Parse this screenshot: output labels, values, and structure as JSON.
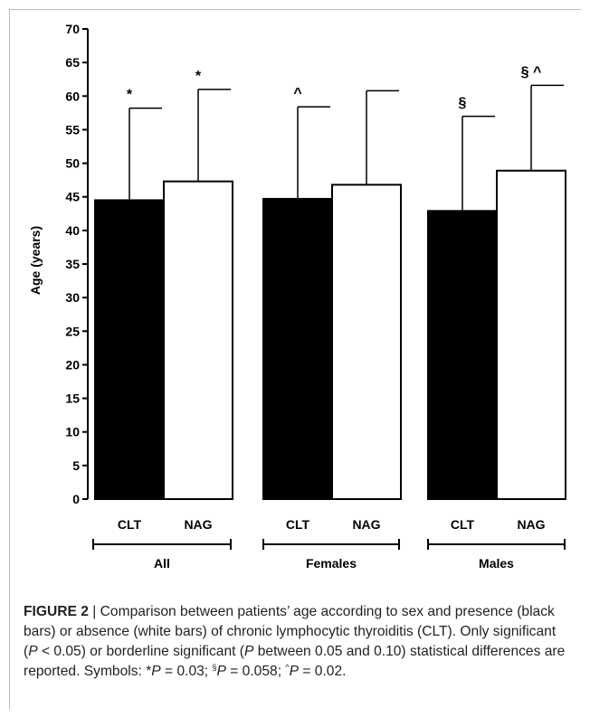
{
  "chart_data": {
    "type": "bar",
    "ylabel": "Age (years)",
    "ylim": [
      0,
      70
    ],
    "yticks": [
      0,
      5,
      10,
      15,
      20,
      25,
      30,
      35,
      40,
      45,
      50,
      55,
      60,
      65,
      70
    ],
    "groups": [
      "All",
      "Females",
      "Males"
    ],
    "bars": [
      {
        "group": "All",
        "label": "CLT",
        "value": 44.5,
        "error_upper": 58.2,
        "fill": "#000000",
        "annotation": "*"
      },
      {
        "group": "All",
        "label": "NAG",
        "value": 47.3,
        "error_upper": 61.0,
        "fill": "#ffffff",
        "annotation": "*"
      },
      {
        "group": "Females",
        "label": "CLT",
        "value": 44.7,
        "error_upper": 58.4,
        "fill": "#000000",
        "annotation": "^"
      },
      {
        "group": "Females",
        "label": "NAG",
        "value": 46.8,
        "error_upper": 60.8,
        "fill": "#ffffff",
        "annotation": ""
      },
      {
        "group": "Males",
        "label": "CLT",
        "value": 42.9,
        "error_upper": 57.0,
        "fill": "#000000",
        "annotation": "§"
      },
      {
        "group": "Males",
        "label": "NAG",
        "value": 48.9,
        "error_upper": 61.6,
        "fill": "#ffffff",
        "annotation": "§ ^"
      }
    ],
    "grid": false,
    "legend": "none"
  },
  "caption": {
    "label": "FIGURE 2",
    "sep": " | ",
    "text1": "Comparison between patients’ age according to sex and presence (black bars) or absence (white bars) of chronic lymphocytic thyroiditis (CLT). Only significant (",
    "p1": "P",
    "text2": " < 0.05) or borderline significant (",
    "p2": "P",
    "text3": " between 0.05 and 0.10) statistical differences are reported. Symbols: *",
    "p3": "P",
    "text4": " = 0.03; ",
    "sym2": "§",
    "p4": "P",
    "text5": " = 0.058; ",
    "sym3": "^",
    "p5": "P",
    "text6": " = 0.02."
  },
  "colors": {
    "rule": "#bdbdbd",
    "caption_text": "#231f20"
  }
}
